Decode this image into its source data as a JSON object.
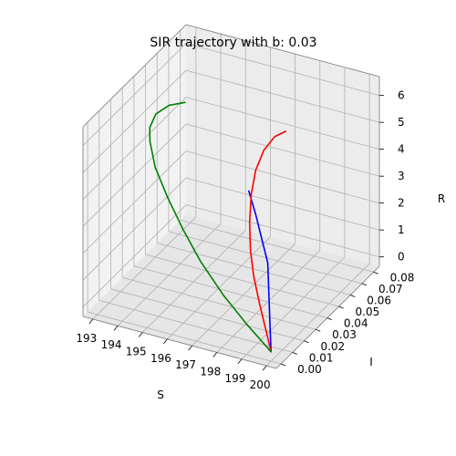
{
  "chart_data": {
    "type": "line",
    "title": "SIR trajectory with b: 0.03",
    "xlabel": "S",
    "ylabel": "I",
    "zlabel": "R",
    "xlim": [
      192.6,
      200.4
    ],
    "ylim": [
      -0.004,
      0.085
    ],
    "zlim": [
      -0.35,
      6.7
    ],
    "xticks": [
      193,
      194,
      195,
      196,
      197,
      198,
      199,
      200
    ],
    "xtick_labels": [
      "193",
      "194",
      "195",
      "196",
      "197",
      "198",
      "199",
      "200"
    ],
    "yticks": [
      0.0,
      0.01,
      0.02,
      0.03,
      0.04,
      0.05,
      0.06,
      0.07,
      0.08
    ],
    "ytick_labels": [
      "0.00",
      "0.01",
      "0.02",
      "0.03",
      "0.04",
      "0.05",
      "0.06",
      "0.07",
      "0.08"
    ],
    "zticks": [
      0,
      1,
      2,
      3,
      4,
      5,
      6
    ],
    "ztick_labels": [
      "0",
      "1",
      "2",
      "3",
      "4",
      "5",
      "6"
    ],
    "grid": true,
    "series": [
      {
        "color": "#0000ff",
        "points": [
          [
            200.0,
            0.0,
            0.0
          ],
          [
            199.5,
            0.01,
            0.2
          ],
          [
            199.0,
            0.02,
            0.5
          ],
          [
            198.5,
            0.03,
            0.8
          ],
          [
            198.0,
            0.04,
            1.1
          ],
          [
            197.6,
            0.045,
            1.4
          ],
          [
            197.2,
            0.05,
            1.7
          ],
          [
            196.8,
            0.055,
            2.0
          ],
          [
            196.5,
            0.058,
            2.3
          ],
          [
            196.3,
            0.06,
            2.5
          ]
        ]
      },
      {
        "color": "#ff0000",
        "points": [
          [
            200.0,
            0.0,
            0.0
          ],
          [
            199.3,
            0.01,
            0.3
          ],
          [
            198.6,
            0.02,
            0.6
          ],
          [
            197.9,
            0.03,
            1.0
          ],
          [
            197.3,
            0.04,
            1.4
          ],
          [
            196.8,
            0.05,
            1.9
          ],
          [
            196.4,
            0.06,
            2.4
          ],
          [
            196.2,
            0.068,
            2.9
          ],
          [
            196.25,
            0.074,
            3.4
          ],
          [
            196.5,
            0.078,
            3.8
          ],
          [
            196.85,
            0.08,
            4.0
          ]
        ]
      },
      {
        "color": "#008000",
        "points": [
          [
            200.0,
            0.0,
            0.0
          ],
          [
            198.9,
            0.003,
            0.6
          ],
          [
            197.8,
            0.006,
            1.3
          ],
          [
            196.7,
            0.01,
            2.1
          ],
          [
            195.8,
            0.014,
            2.9
          ],
          [
            195.0,
            0.018,
            3.7
          ],
          [
            194.3,
            0.022,
            4.5
          ],
          [
            193.9,
            0.026,
            5.2
          ],
          [
            193.8,
            0.028,
            5.6
          ],
          [
            193.9,
            0.031,
            6.0
          ],
          [
            194.3,
            0.034,
            6.3
          ],
          [
            194.8,
            0.037,
            6.4
          ]
        ]
      }
    ]
  }
}
